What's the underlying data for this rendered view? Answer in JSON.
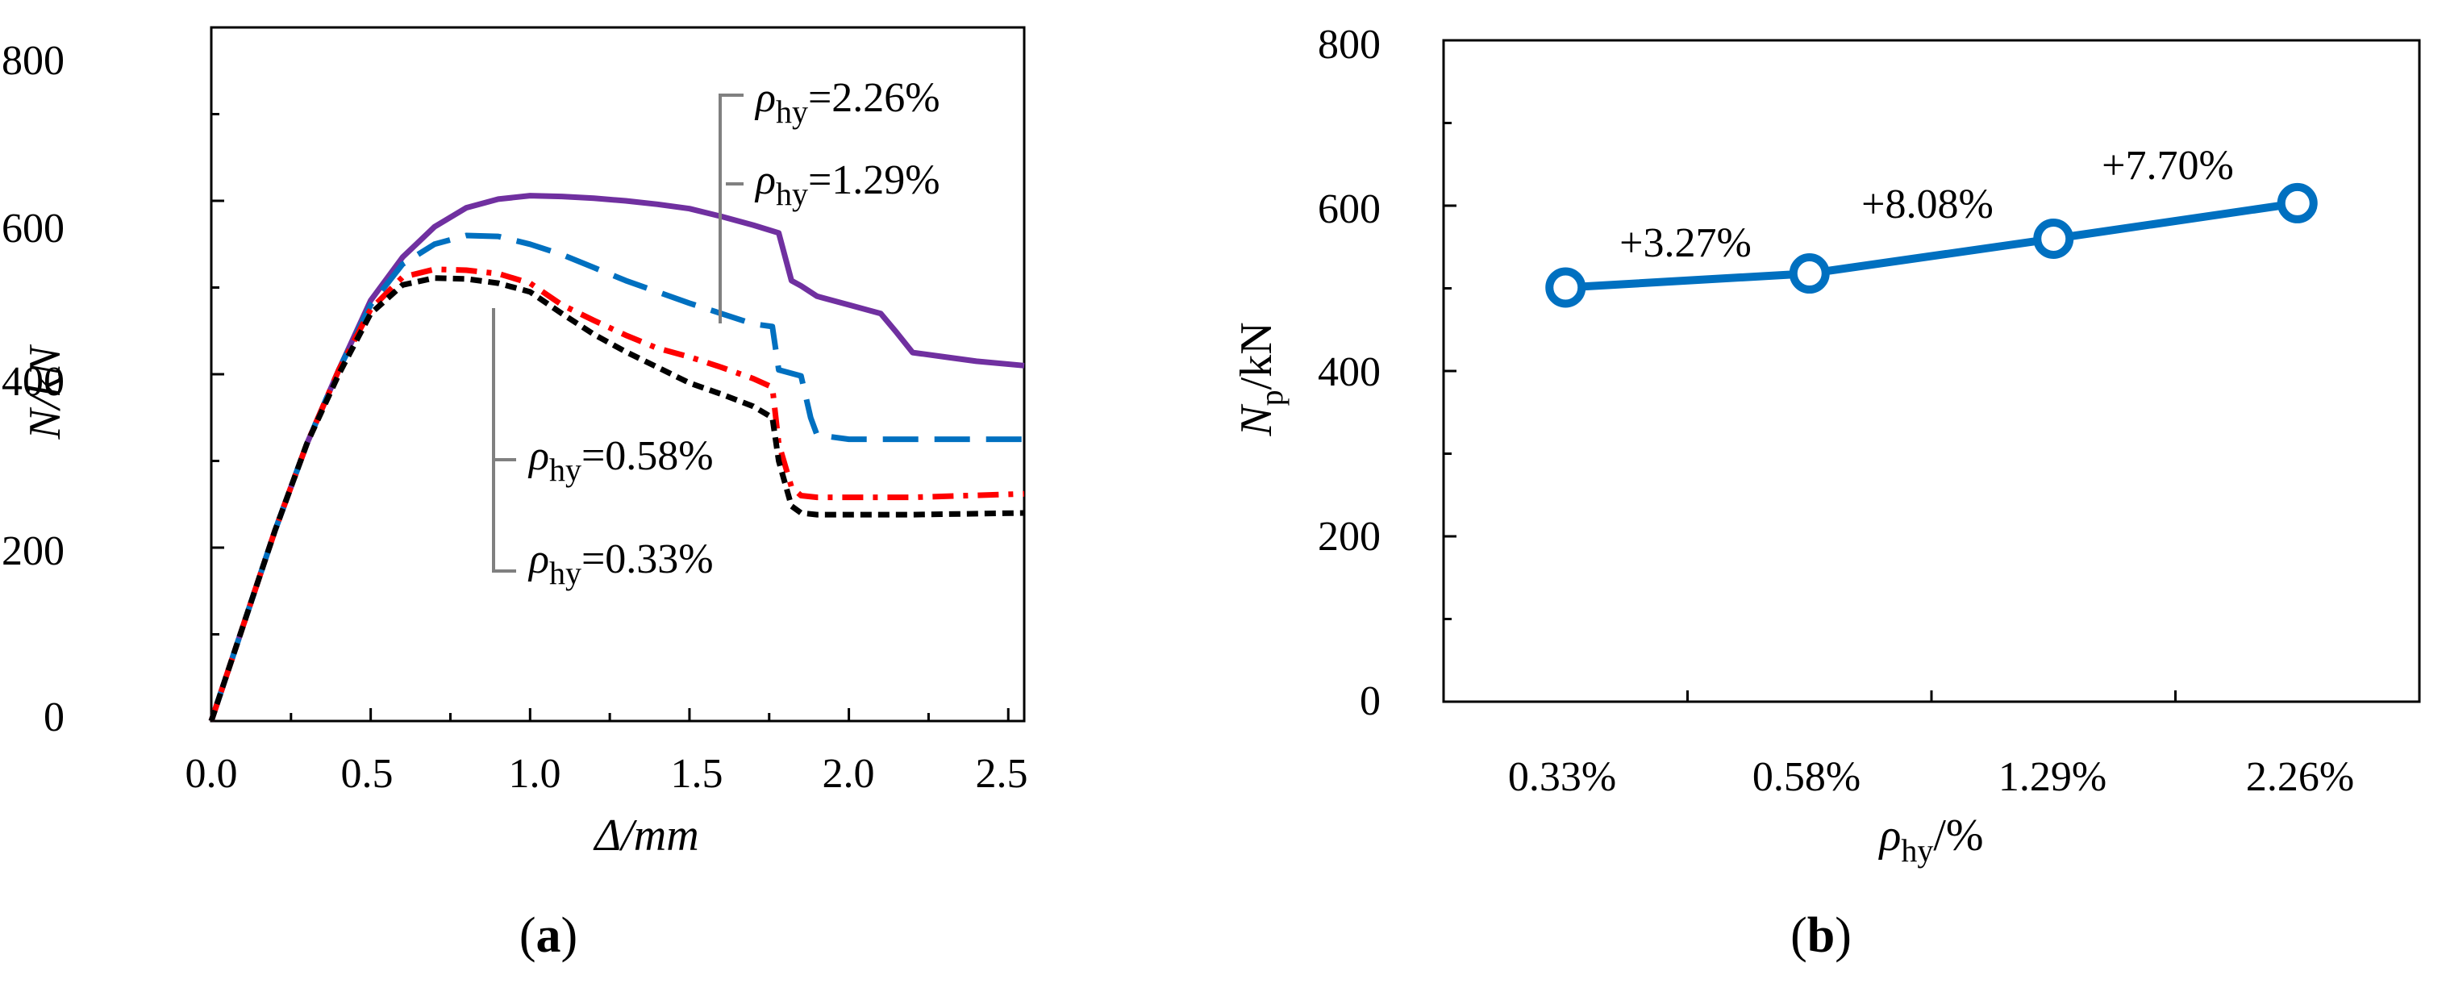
{
  "chart_data": [
    {
      "type": "line",
      "panel_label": "a",
      "xlabel": "Δ/mm",
      "ylabel": "N/kN",
      "xlim": [
        0,
        2.55
      ],
      "ylim": [
        0,
        800
      ],
      "xticks": [
        "0.0",
        "0.5",
        "1.0",
        "1.5",
        "2.0",
        "2.5"
      ],
      "yticks": [
        "0",
        "200",
        "400",
        "600",
        "800"
      ],
      "grid": false,
      "series": [
        {
          "name": "ρhy=2.26%",
          "rho_label": "ρ",
          "sub_label": "hy",
          "value_label": "=2.26%",
          "color": "#7030A0",
          "dash": "solid",
          "x": [
            0,
            0.1,
            0.2,
            0.3,
            0.4,
            0.5,
            0.6,
            0.7,
            0.8,
            0.9,
            1.0,
            1.1,
            1.2,
            1.3,
            1.4,
            1.5,
            1.6,
            1.7,
            1.78,
            1.82,
            1.85,
            1.9,
            2.0,
            2.1,
            2.15,
            2.2,
            2.3,
            2.4,
            2.55
          ],
          "y": [
            0,
            110,
            220,
            320,
            405,
            485,
            535,
            570,
            592,
            602,
            606,
            605,
            603,
            600,
            596,
            591,
            582,
            572,
            563,
            508,
            502,
            490,
            480,
            470,
            448,
            425,
            420,
            415,
            410
          ]
        },
        {
          "name": "ρhy=1.29%",
          "rho_label": "ρ",
          "sub_label": "hy",
          "value_label": "=1.29%",
          "color": "#0070C0",
          "dash": "long",
          "x": [
            0,
            0.1,
            0.2,
            0.3,
            0.4,
            0.5,
            0.6,
            0.7,
            0.8,
            0.9,
            1.0,
            1.1,
            1.2,
            1.3,
            1.4,
            1.5,
            1.6,
            1.7,
            1.76,
            1.78,
            1.85,
            1.88,
            1.9,
            2.0,
            2.2,
            2.55
          ],
          "y": [
            0,
            110,
            220,
            320,
            405,
            480,
            527,
            550,
            560,
            559,
            550,
            538,
            523,
            508,
            495,
            482,
            470,
            458,
            455,
            405,
            398,
            350,
            330,
            325,
            325,
            325
          ]
        },
        {
          "name": "ρhy=0.58%",
          "rho_label": "ρ",
          "sub_label": "hy",
          "value_label": "=0.58%",
          "color": "#FF0000",
          "dash": "dashdot",
          "x": [
            0,
            0.1,
            0.2,
            0.3,
            0.4,
            0.5,
            0.6,
            0.7,
            0.8,
            0.9,
            1.0,
            1.1,
            1.2,
            1.3,
            1.4,
            1.5,
            1.6,
            1.7,
            1.76,
            1.78,
            1.82,
            1.85,
            1.9,
            2.0,
            2.2,
            2.55
          ],
          "y": [
            0,
            110,
            220,
            320,
            405,
            475,
            512,
            521,
            520,
            516,
            505,
            480,
            462,
            445,
            430,
            420,
            408,
            395,
            385,
            320,
            270,
            260,
            258,
            258,
            258,
            262
          ]
        },
        {
          "name": "ρhy=0.33%",
          "rho_label": "ρ",
          "sub_label": "hy",
          "value_label": "=0.33%",
          "color": "#000000",
          "dash": "short",
          "x": [
            0,
            0.1,
            0.2,
            0.3,
            0.4,
            0.5,
            0.6,
            0.7,
            0.8,
            0.9,
            1.0,
            1.1,
            1.2,
            1.3,
            1.4,
            1.5,
            1.6,
            1.7,
            1.76,
            1.78,
            1.82,
            1.85,
            1.9,
            2.0,
            2.2,
            2.55
          ],
          "y": [
            0,
            110,
            220,
            320,
            400,
            470,
            503,
            511,
            510,
            505,
            495,
            470,
            446,
            426,
            408,
            390,
            377,
            363,
            350,
            300,
            248,
            240,
            238,
            238,
            238,
            240
          ]
        }
      ]
    },
    {
      "type": "line",
      "panel_label": "b",
      "xlabel_rho": "ρ",
      "xlabel_sub": "hy",
      "xlabel_rest": "/%",
      "ylabel_main": "N",
      "ylabel_sub": "p",
      "ylabel_rest": "/kN",
      "categories": [
        "0.33%",
        "0.58%",
        "1.29%",
        "2.26%"
      ],
      "values": [
        501,
        518,
        560,
        603
      ],
      "ylim": [
        0,
        800
      ],
      "yticks": [
        "0",
        "200",
        "400",
        "600",
        "800"
      ],
      "color": "#0070C0",
      "annotations": [
        "+3.27%",
        "+8.08%",
        "+7.70%"
      ],
      "grid": false
    }
  ]
}
